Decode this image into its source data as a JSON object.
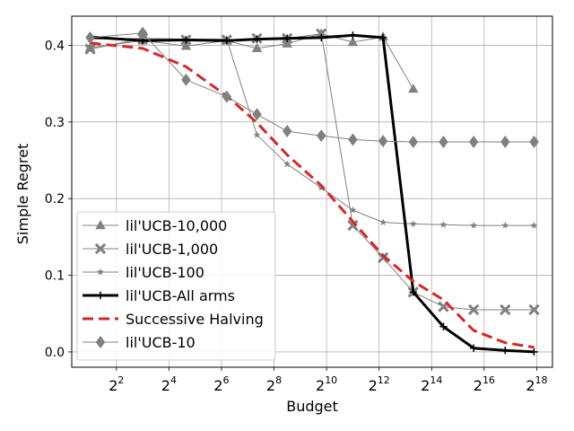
{
  "chart_data": {
    "type": "line",
    "title": "",
    "xlabel": "Budget",
    "ylabel": "Simple Regret",
    "x_scale": "log2",
    "x_ticks": [
      {
        "exp": 2,
        "base": "2",
        "sup": "2"
      },
      {
        "exp": 4,
        "base": "2",
        "sup": "4"
      },
      {
        "exp": 6,
        "base": "2",
        "sup": "6"
      },
      {
        "exp": 8,
        "base": "2",
        "sup": "8"
      },
      {
        "exp": 10,
        "base": "2",
        "sup": "10"
      },
      {
        "exp": 12,
        "base": "2",
        "sup": "12"
      },
      {
        "exp": 14,
        "base": "2",
        "sup": "14"
      },
      {
        "exp": 16,
        "base": "2",
        "sup": "16"
      },
      {
        "exp": 18,
        "base": "2",
        "sup": "18"
      }
    ],
    "y_ticks": [
      "0.0",
      "0.1",
      "0.2",
      "0.3",
      "0.4"
    ],
    "xlim_exp": [
      0.3,
      18.6
    ],
    "ylim": [
      -0.02,
      0.438
    ],
    "grid": true,
    "legend_position": "lower-left",
    "series": [
      {
        "name": "lil'UCB-10,000",
        "color": "#808080",
        "marker": "triangle",
        "width": 1,
        "x_exp": [
          1,
          3,
          4.65,
          6.2,
          7.35,
          8.5,
          9.8,
          11,
          12.15,
          13.3
        ],
        "y": [
          0.397,
          0.406,
          0.399,
          0.406,
          0.396,
          0.402,
          0.415,
          0.404,
          0.411,
          0.343
        ]
      },
      {
        "name": "lil'UCB-1,000",
        "color": "#808080",
        "marker": "x",
        "width": 1,
        "x_exp": [
          1,
          3,
          4.65,
          6.2,
          7.35,
          8.5,
          9.8,
          11,
          12.15,
          13.3,
          14.45,
          15.6,
          16.8,
          17.9
        ],
        "y": [
          0.395,
          0.409,
          0.407,
          0.407,
          0.409,
          0.409,
          0.415,
          0.165,
          0.123,
          0.078,
          0.059,
          0.055,
          0.055,
          0.055
        ]
      },
      {
        "name": "lil'UCB-100",
        "color": "#808080",
        "marker": "star",
        "width": 1,
        "x_exp": [
          1,
          3,
          4.65,
          6.2,
          7.35,
          8.5,
          9.8,
          11,
          12.15,
          13.3,
          14.45,
          15.6,
          16.8,
          17.9
        ],
        "y": [
          0.408,
          0.409,
          0.408,
          0.408,
          0.283,
          0.245,
          0.214,
          0.185,
          0.169,
          0.167,
          0.166,
          0.165,
          0.165,
          0.165
        ]
      },
      {
        "name": "lil'UCB-All arms",
        "color": "#000000",
        "marker": "plus",
        "width": 3,
        "x_exp": [
          1,
          3,
          4.65,
          6.2,
          7.35,
          8.5,
          9.8,
          11,
          12.15,
          13.3,
          14.45,
          15.6,
          16.8,
          17.9
        ],
        "y": [
          0.411,
          0.406,
          0.407,
          0.406,
          0.408,
          0.409,
          0.41,
          0.413,
          0.41,
          0.078,
          0.033,
          0.005,
          0.002,
          0.0
        ]
      },
      {
        "name": "Successive Halving",
        "color": "#d62728",
        "marker": "none",
        "width": 3,
        "dash": true,
        "x_exp": [
          1,
          3,
          4.65,
          6.2,
          7.35,
          8.5,
          9.8,
          11,
          12.15,
          13.3,
          14.45,
          15.6,
          16.8,
          17.9
        ],
        "y": [
          0.403,
          0.396,
          0.372,
          0.334,
          0.299,
          0.257,
          0.217,
          0.17,
          0.126,
          0.092,
          0.068,
          0.028,
          0.012,
          0.006
        ]
      },
      {
        "name": "lil'UCB-10",
        "color": "#808080",
        "marker": "diamond",
        "width": 1,
        "x_exp": [
          1,
          3,
          4.65,
          6.2,
          7.35,
          8.5,
          9.8,
          11,
          12.15,
          13.3,
          14.45,
          15.6,
          16.8,
          17.9
        ],
        "y": [
          0.41,
          0.416,
          0.355,
          0.333,
          0.31,
          0.288,
          0.282,
          0.277,
          0.275,
          0.274,
          0.274,
          0.274,
          0.274,
          0.274
        ]
      }
    ]
  }
}
